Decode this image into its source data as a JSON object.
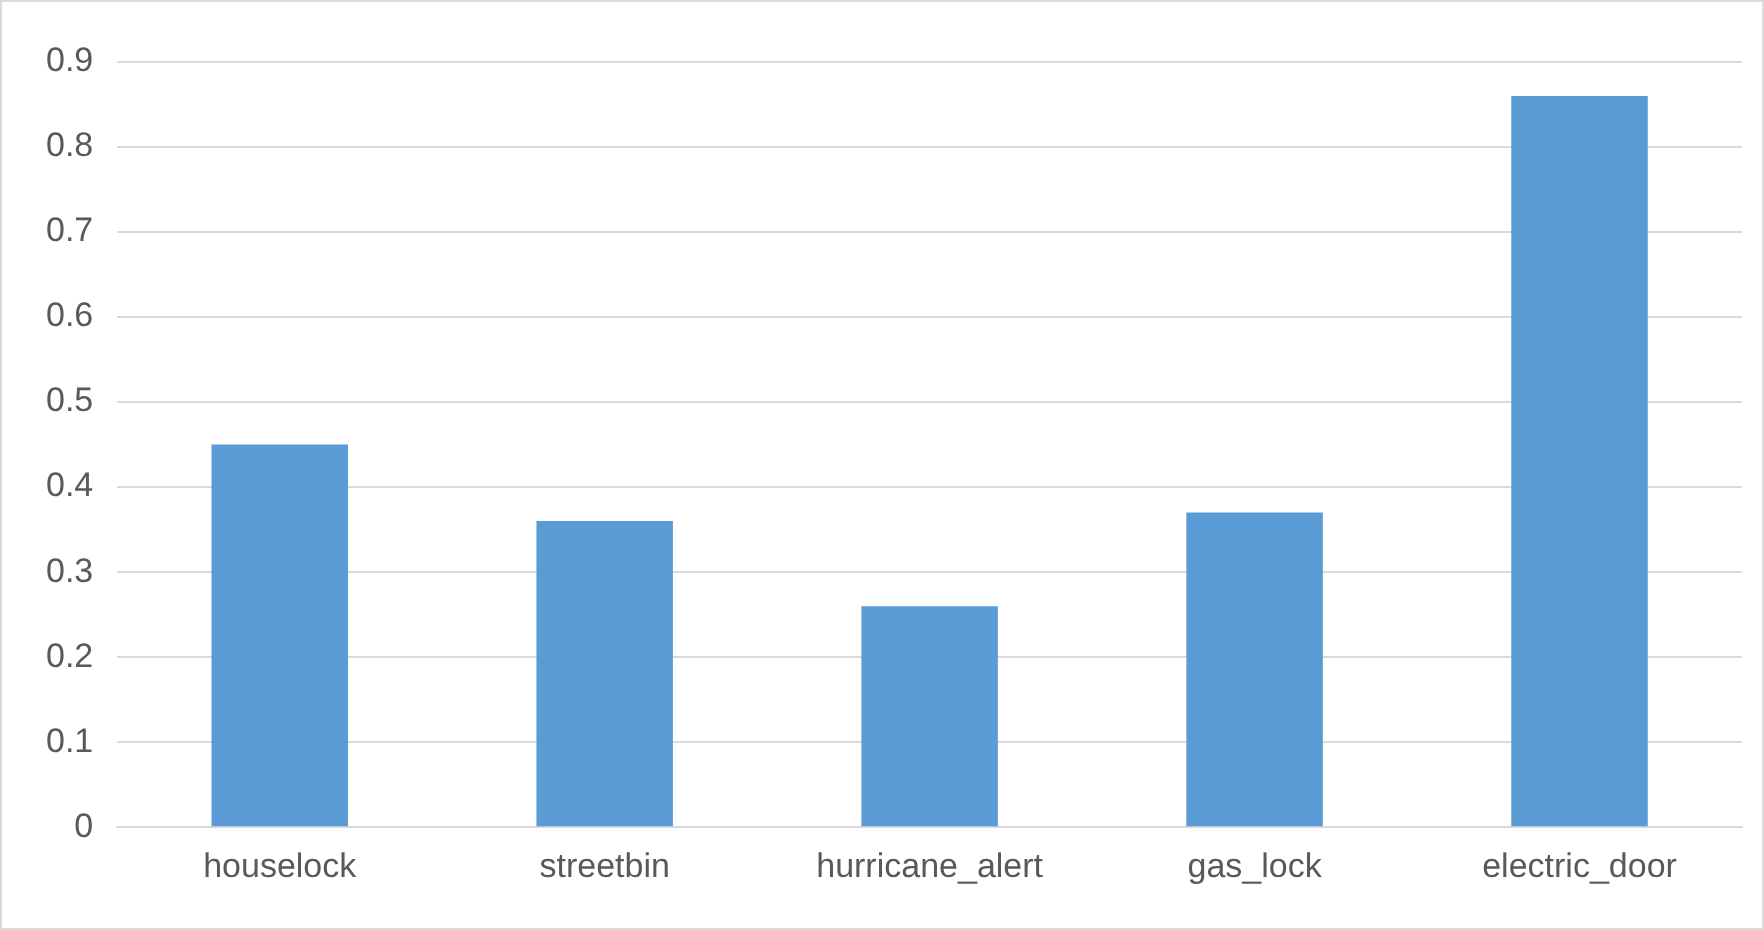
{
  "chart_data": {
    "type": "bar",
    "categories": [
      "houselock",
      "streetbin",
      "hurricane_alert",
      "gas_lock",
      "electric_door"
    ],
    "values": [
      0.45,
      0.36,
      0.26,
      0.37,
      0.86
    ],
    "color": "#5b9bd5",
    "ylim": [
      0,
      0.9
    ],
    "yticks": [
      0,
      0.1,
      0.2,
      0.3,
      0.4,
      0.5,
      0.6,
      0.7,
      0.8,
      0.9
    ],
    "grid": "y"
  }
}
